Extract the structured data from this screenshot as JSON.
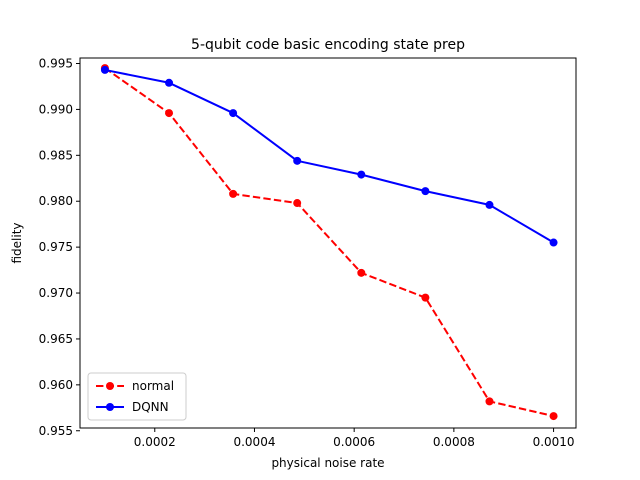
{
  "chart_data": {
    "type": "line",
    "title": "5-qubit code basic encoding state prep",
    "xlabel": "physical noise rate",
    "ylabel": "fidelity",
    "xlim": [
      5e-05,
      0.001045
    ],
    "ylim": [
      0.9553,
      0.9956
    ],
    "x_ticks": [
      0.0002,
      0.0004,
      0.0006,
      0.0008,
      0.001
    ],
    "x_tick_labels": [
      "0.0002",
      "0.0004",
      "0.0006",
      "0.0008",
      "0.0010"
    ],
    "y_ticks": [
      0.955,
      0.96,
      0.965,
      0.97,
      0.975,
      0.98,
      0.985,
      0.99,
      0.995
    ],
    "y_tick_labels": [
      "0.955",
      "0.960",
      "0.965",
      "0.970",
      "0.975",
      "0.980",
      "0.985",
      "0.990",
      "0.995"
    ],
    "grid": false,
    "legend_position": "lower-left",
    "series": [
      {
        "name": "normal",
        "color": "#ff0000",
        "line_style": "dashed",
        "marker": "circle",
        "x": [
          0.0001,
          0.00022857,
          0.00035714,
          0.00048571,
          0.00061429,
          0.00074286,
          0.00087143,
          0.001
        ],
        "y": [
          0.9945,
          0.9896,
          0.9808,
          0.9798,
          0.9722,
          0.9695,
          0.9582,
          0.9566
        ]
      },
      {
        "name": "DQNN",
        "color": "#0000ff",
        "line_style": "solid",
        "marker": "circle",
        "x": [
          0.0001,
          0.00022857,
          0.00035714,
          0.00048571,
          0.00061429,
          0.00074286,
          0.00087143,
          0.001
        ],
        "y": [
          0.9943,
          0.9929,
          0.9896,
          0.9844,
          0.9829,
          0.9811,
          0.9796,
          0.9755
        ]
      }
    ]
  }
}
